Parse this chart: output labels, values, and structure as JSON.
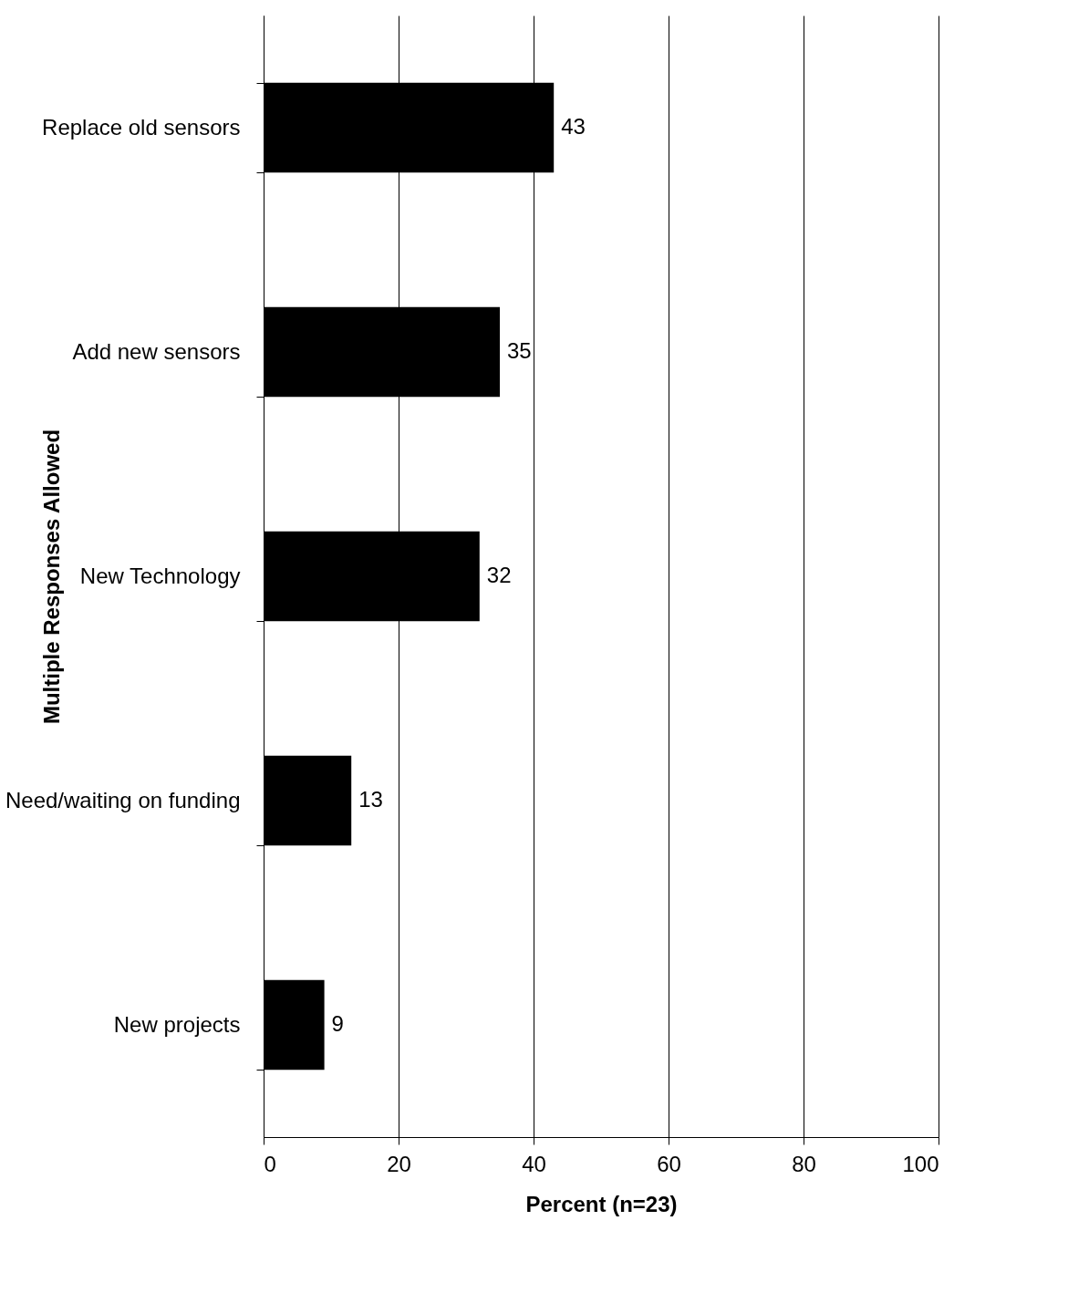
{
  "chart_data": {
    "type": "bar",
    "orientation": "horizontal",
    "xlabel": "Percent (n=23)",
    "ylabel": "Multiple Responses Allowed",
    "categories": [
      "Replace old sensors",
      "Add new sensors",
      "New Technology",
      "Need/waiting on funding",
      "New projects"
    ],
    "values": [
      43,
      35,
      32,
      13,
      9
    ],
    "color": "#000000",
    "xlim": [
      0,
      100
    ],
    "xticks": [
      0,
      20,
      40,
      60,
      80,
      100
    ],
    "grid": "x",
    "data_labels": true
  }
}
